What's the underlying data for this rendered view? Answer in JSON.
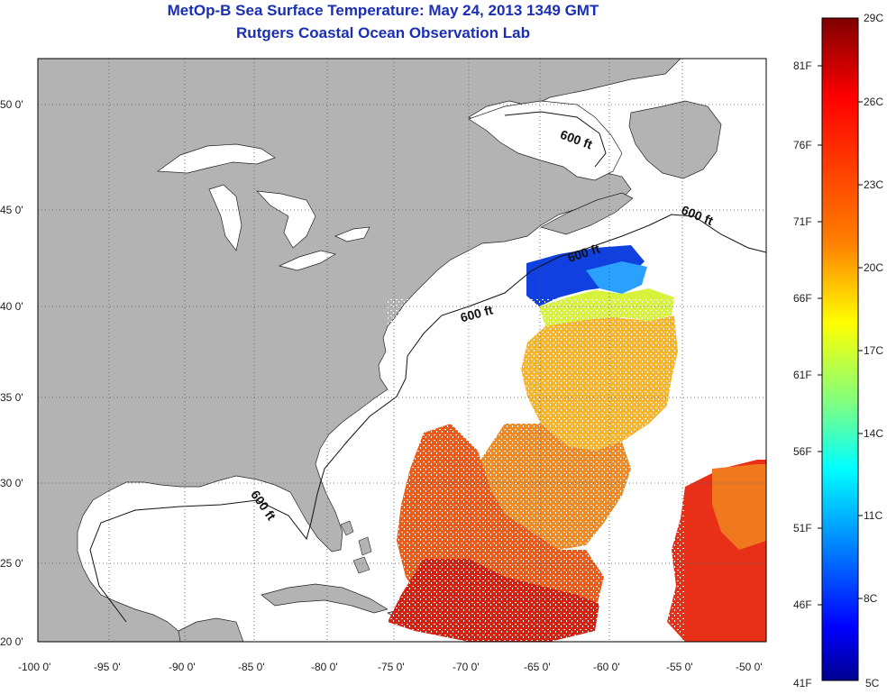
{
  "title": {
    "line1": "MetOp-B Sea Surface Temperature:  May 24, 2013 1349 GMT",
    "line2": "Rutgers Coastal Ocean Observation Lab"
  },
  "map": {
    "lon_range": [
      -100,
      -50
    ],
    "lat_range": [
      20,
      52
    ],
    "lat_ticks": [
      "50 0'",
      "45 0'",
      "40 0'",
      "35 0'",
      "30 0'",
      "25 0'",
      "20 0'"
    ],
    "lon_ticks": [
      "-100 0'",
      "-95 0'",
      "-90 0'",
      "-85 0'",
      "-80 0'",
      "-75 0'",
      "-70 0'",
      "-65 0'",
      "-60 0'",
      "-55 0'",
      "-50 0'"
    ],
    "contour_label": "600 ft",
    "land_color": "#b3b3b3",
    "ocean_color": "#ffffff",
    "gridlines": "dotted"
  },
  "colorbar": {
    "celsius_labels": [
      "29C",
      "26C",
      "23C",
      "20C",
      "17C",
      "14C",
      "11C",
      "8C",
      "5C"
    ],
    "fahrenheit_labels": [
      "81F",
      "76F",
      "71F",
      "66F",
      "61F",
      "56F",
      "51F",
      "46F",
      "41F"
    ],
    "colors": [
      "#7f0000",
      "#ff0000",
      "#ff8000",
      "#ffff00",
      "#80ff80",
      "#00ffff",
      "#0080ff",
      "#0000ff",
      "#00008f"
    ]
  }
}
